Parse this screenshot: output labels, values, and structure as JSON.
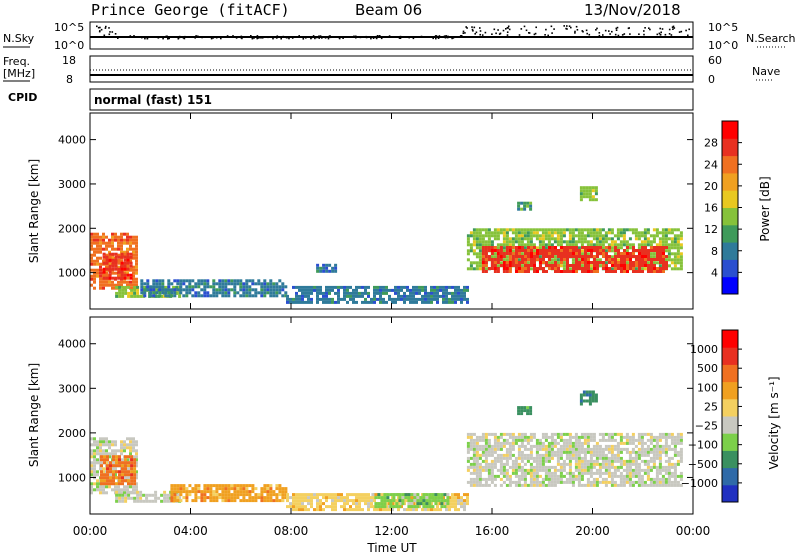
{
  "header": {
    "station": "Prince George (fitACF)",
    "beam": "Beam 06",
    "date": "13/Nov/2018"
  },
  "params": {
    "nsky_label": "N.Sky",
    "nsky_ticks": [
      "10^5",
      "10^0"
    ],
    "nsearch_label": "N.Search",
    "freq_label_1": "Freq.",
    "freq_label_2": "[MHz]",
    "freq_ticks": [
      "18",
      "8"
    ],
    "nave_ticks": [
      "60",
      "0"
    ],
    "nave_label": "Nave",
    "cpid_label": "CPID",
    "cpid_text": "normal (fast) 151"
  },
  "chart_data": [
    {
      "type": "heatmap",
      "title": "",
      "xlabel": "Time UT",
      "ylabel": "Slant Range [km]",
      "x_ticks": [
        "00:00",
        "04:00",
        "08:00",
        "12:00",
        "16:00",
        "20:00",
        "00:00"
      ],
      "xlim_hours": [
        0,
        24
      ],
      "y_ticks": [
        1000,
        2000,
        3000,
        4000
      ],
      "ylim": [
        180,
        4600
      ],
      "colorbar": {
        "label": "Power [dB]",
        "ticks": [
          "28",
          "24",
          "20",
          "16",
          "12",
          "8",
          "4"
        ],
        "range": [
          0,
          30
        ],
        "colors": [
          "#0000ff",
          "#2a4fd0",
          "#2f7a9a",
          "#3f9a5a",
          "#86c23a",
          "#e8c820",
          "#f0a020",
          "#f07020",
          "#e83020",
          "#ff0000"
        ]
      },
      "regions": [
        {
          "t0": 0.0,
          "t1": 1.9,
          "r0": 650,
          "r1": 1900,
          "value": 22
        },
        {
          "t0": 0.5,
          "t1": 1.6,
          "r0": 900,
          "r1": 1450,
          "value": 28
        },
        {
          "t0": 1.0,
          "t1": 3.6,
          "r0": 450,
          "r1": 700,
          "value": 14
        },
        {
          "t0": 2.0,
          "t1": 7.8,
          "r0": 450,
          "r1": 850,
          "value": 8
        },
        {
          "t0": 7.8,
          "t1": 15.0,
          "r0": 300,
          "r1": 700,
          "value": 6
        },
        {
          "t0": 9.0,
          "t1": 9.8,
          "r0": 1000,
          "r1": 1200,
          "value": 6
        },
        {
          "t0": 15.0,
          "t1": 23.5,
          "r0": 1100,
          "r1": 2000,
          "value": 14
        },
        {
          "t0": 15.6,
          "t1": 23.0,
          "r0": 1000,
          "r1": 1600,
          "value": 26
        },
        {
          "t0": 19.5,
          "t1": 20.2,
          "r0": 2650,
          "r1": 2950,
          "value": 12
        },
        {
          "t0": 17.0,
          "t1": 17.5,
          "r0": 2400,
          "r1": 2600,
          "value": 10
        }
      ]
    },
    {
      "type": "heatmap",
      "title": "",
      "xlabel": "Time UT",
      "ylabel": "Slant Range [km]",
      "x_ticks": [
        "00:00",
        "04:00",
        "08:00",
        "12:00",
        "16:00",
        "20:00",
        "00:00"
      ],
      "xlim_hours": [
        0,
        24
      ],
      "y_ticks": [
        1000,
        2000,
        3000,
        4000
      ],
      "ylim": [
        180,
        4600
      ],
      "colorbar": {
        "label": "Velocity [m s⁻¹]",
        "ticks": [
          "1000",
          "500",
          "100",
          "25",
          "−25",
          "−100",
          "−500",
          "−1000"
        ],
        "colors": [
          "#2030c0",
          "#2f6aa8",
          "#3a9060",
          "#7cd04a",
          "#c8c8c0",
          "#f4d060",
          "#f0a020",
          "#f07020",
          "#e83020",
          "#ff0000"
        ]
      },
      "regions": [
        {
          "t0": 0.0,
          "t1": 1.9,
          "r0": 650,
          "r1": 1900,
          "color_index": 4
        },
        {
          "t0": 0.4,
          "t1": 1.8,
          "r0": 850,
          "r1": 1500,
          "color_index": 7
        },
        {
          "t0": 1.0,
          "t1": 3.6,
          "r0": 450,
          "r1": 700,
          "color_index": 4
        },
        {
          "t0": 3.2,
          "t1": 7.8,
          "r0": 500,
          "r1": 850,
          "color_index": 6
        },
        {
          "t0": 7.8,
          "t1": 15.0,
          "r0": 300,
          "r1": 650,
          "color_index": 5
        },
        {
          "t0": 11.2,
          "t1": 14.2,
          "r0": 350,
          "r1": 650,
          "color_index": 3
        },
        {
          "t0": 15.0,
          "t1": 23.5,
          "r0": 800,
          "r1": 2000,
          "color_index": 4
        },
        {
          "t0": 19.5,
          "t1": 20.2,
          "r0": 2650,
          "r1": 2950,
          "color_index": 2
        },
        {
          "t0": 17.0,
          "t1": 17.5,
          "r0": 2400,
          "r1": 2600,
          "color_index": 2
        }
      ]
    }
  ]
}
